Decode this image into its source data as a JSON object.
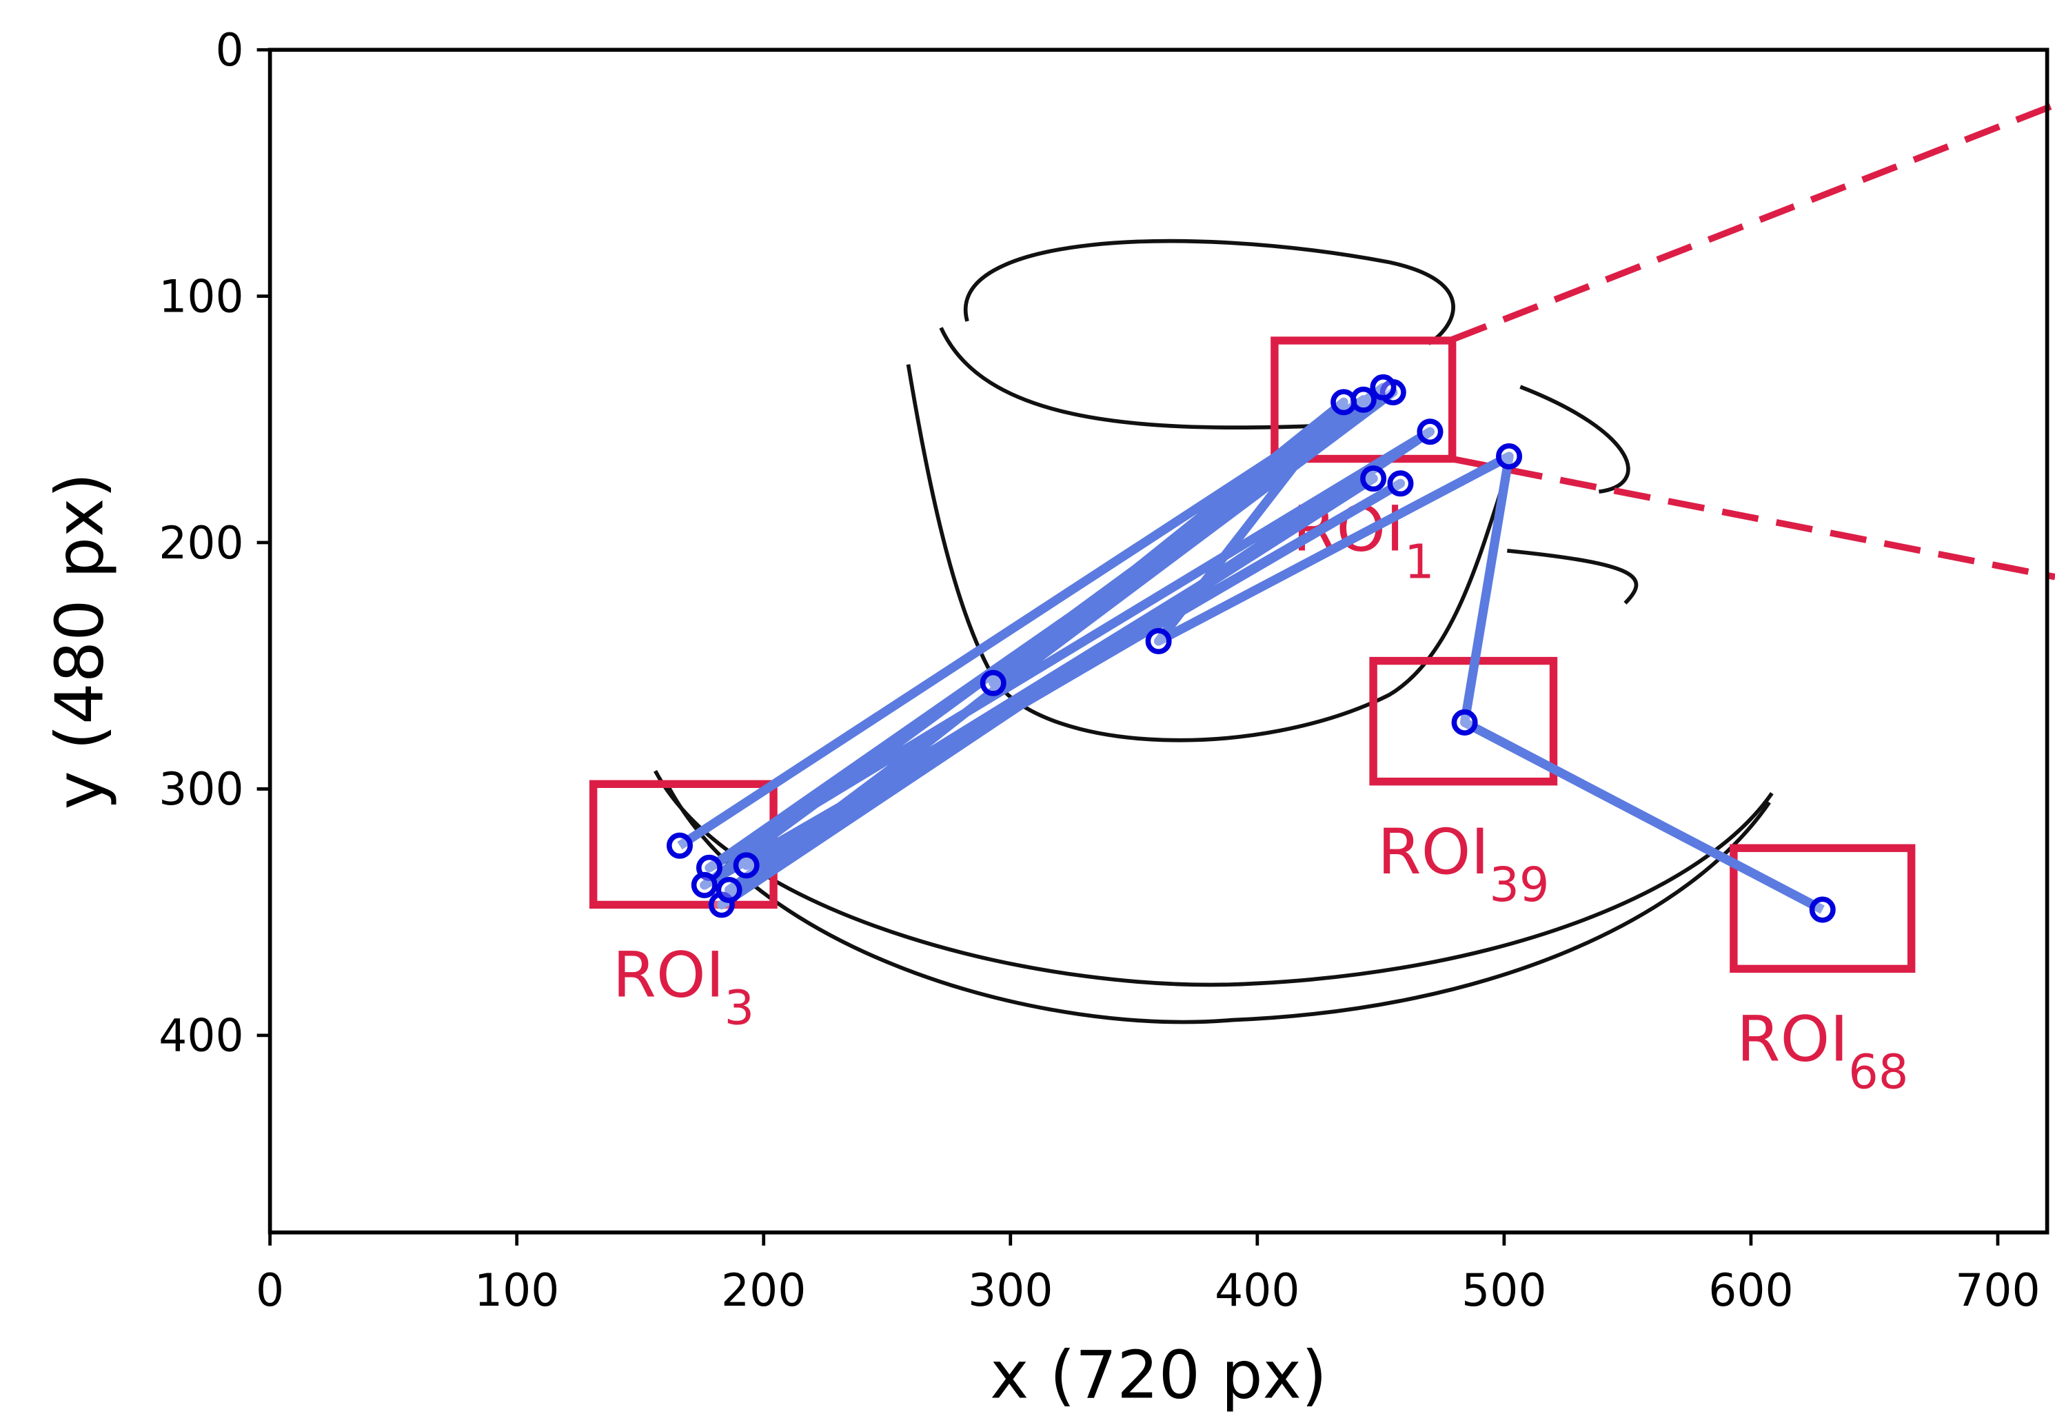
{
  "chart_data": {
    "type": "scatter",
    "xlabel": "x (720 px)",
    "ylabel": "y (480 px)",
    "xlim": [
      0,
      720
    ],
    "ylim": [
      480,
      0
    ],
    "xticks": [
      0,
      100,
      200,
      300,
      400,
      500,
      600,
      700
    ],
    "yticks": [
      0,
      100,
      200,
      300,
      400
    ],
    "x": [
      166,
      443,
      183,
      470,
      178,
      455,
      186,
      447,
      193,
      458,
      176,
      451,
      293,
      435,
      360,
      502,
      484,
      629
    ],
    "values": [
      323,
      142,
      347,
      155,
      332,
      139,
      341,
      174,
      331,
      176,
      339,
      137,
      257,
      143,
      240,
      165,
      273,
      349
    ],
    "point_color": "#0000dd",
    "line_color": "#5b7be0",
    "roi_color": "#dc1e46",
    "rois": [
      {
        "label": "ROI",
        "subscript": "1",
        "x0": 407,
        "x1": 479,
        "y0": 118,
        "y1": 166
      },
      {
        "label": "ROI",
        "subscript": "3",
        "x0": 131,
        "x1": 204,
        "y0": 298,
        "y1": 347
      },
      {
        "label": "ROI",
        "subscript": "39",
        "x0": 447,
        "x1": 520,
        "y0": 248,
        "y1": 297
      },
      {
        "label": "ROI",
        "subscript": "68",
        "x0": 593,
        "x1": 665,
        "y0": 324,
        "y1": 373
      }
    ]
  }
}
